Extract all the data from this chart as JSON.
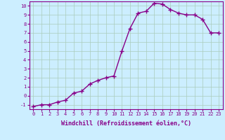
{
  "x": [
    0,
    1,
    2,
    3,
    4,
    5,
    6,
    7,
    8,
    9,
    10,
    11,
    12,
    13,
    14,
    15,
    16,
    17,
    18,
    19,
    20,
    21,
    22,
    23
  ],
  "y": [
    -1.2,
    -1.0,
    -1.0,
    -0.7,
    -0.5,
    0.3,
    0.5,
    1.3,
    1.7,
    2.0,
    2.2,
    5.0,
    7.5,
    9.2,
    9.4,
    10.3,
    10.2,
    9.6,
    9.2,
    9.0,
    9.0,
    8.5,
    7.0,
    7.0
  ],
  "xlabel": "Windchill (Refroidissement éolien,°C)",
  "xlim": [
    -0.5,
    23.5
  ],
  "ylim": [
    -1.5,
    10.5
  ],
  "yticks": [
    -1,
    0,
    1,
    2,
    3,
    4,
    5,
    6,
    7,
    8,
    9,
    10
  ],
  "xticks": [
    0,
    1,
    2,
    3,
    4,
    5,
    6,
    7,
    8,
    9,
    10,
    11,
    12,
    13,
    14,
    15,
    16,
    17,
    18,
    19,
    20,
    21,
    22,
    23
  ],
  "line_color": "#880088",
  "marker": "+",
  "marker_size": 4,
  "marker_lw": 1.0,
  "line_width": 1.0,
  "bg_color": "#cceeff",
  "grid_color": "#aaccbb",
  "font_color": "#880088",
  "font_family": "monospace",
  "tick_fontsize": 5.0,
  "xlabel_fontsize": 6.0
}
